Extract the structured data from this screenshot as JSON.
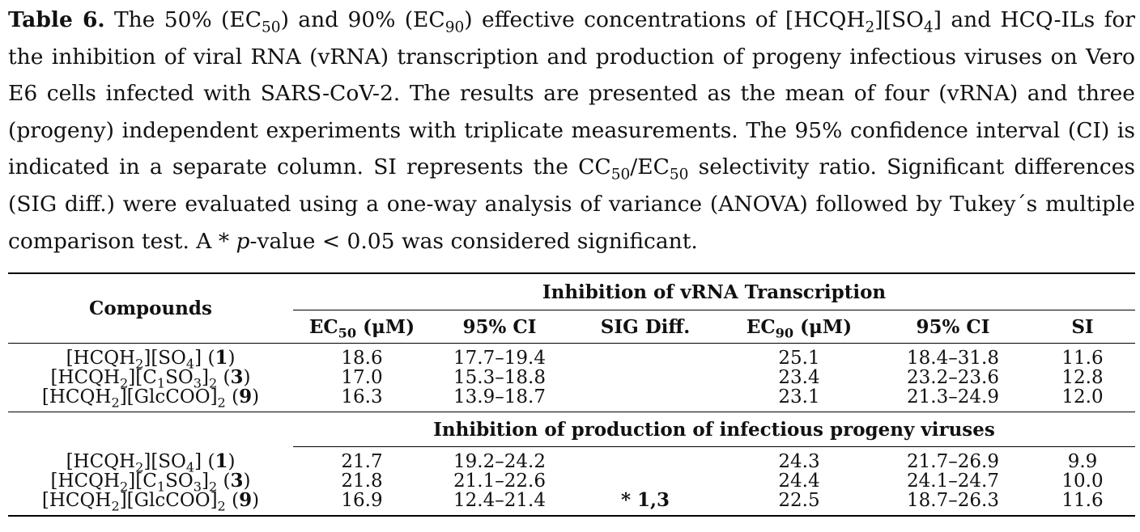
{
  "caption": {
    "label": "Table 6.",
    "p1": " The 50% (EC",
    "sub_50a": "50",
    "p2": ") and 90% (EC",
    "sub_90a": "90",
    "p3": ") effective concentrations of [HCQH",
    "sub_2a": "2",
    "p4": "][SO",
    "sub_4a": "4",
    "p5": "] and HCQ-ILs for the inhibition of viral RNA (vRNA) transcription and production of progeny infectious viruses on Vero E6 cells infected with SARS-CoV-2. The results are presented as the mean of four (vRNA) and three (progeny) independent experiments with triplicate measurements. The 95% confidence interval (CI) is indicated in a separate column. SI represents the CC",
    "sub_50b": "50",
    "p6": "/EC",
    "sub_50c": "50",
    "p7": " selectivity ratio. Significant differences (SIG diff.) were evaluated using a one-way analysis of variance (ANOVA) followed by Tukey´s multiple comparison test. A * ",
    "p_italic": "p",
    "p8": "-value < 0.05 was considered significant."
  },
  "table": {
    "compounds_header": "Compounds",
    "section1_title": "Inhibition of vRNA Transcription",
    "section2_title": "Inhibition of production of infectious progeny viruses",
    "col_ec50": "EC",
    "col_ec50_sub": "50",
    "col_ec50_unit": " (μM)",
    "col_ci": "95% CI",
    "col_sig": "SIG Diff.",
    "col_ec90": "EC",
    "col_ec90_sub": "90",
    "col_ec90_unit": " (μM)",
    "col_ci2": "95% CI",
    "col_si": "SI",
    "compounds": [
      {
        "pre": "[HCQH",
        "s1": "2",
        "mid": "][SO",
        "s2": "4",
        "post": "] (",
        "num": "1",
        "end": ")"
      },
      {
        "pre": "[HCQH",
        "s1": "2",
        "mid": "][C",
        "s2": "1",
        "mid2": "SO",
        "s3": "3",
        "mid3": "]",
        "s4": "2",
        "post": " (",
        "num": "3",
        "end": ")"
      },
      {
        "pre": "[HCQH",
        "s1": "2",
        "mid": "][GlcCOO]",
        "s2": "2",
        "post": " (",
        "num": "9",
        "end": ")"
      }
    ],
    "section1_rows": [
      {
        "ec50": "18.6",
        "ci": "17.7–19.4",
        "sig": "",
        "ec90": "25.1",
        "ci2": "18.4–31.8",
        "si": "11.6"
      },
      {
        "ec50": "17.0",
        "ci": "15.3–18.8",
        "sig": "",
        "ec90": "23.4",
        "ci2": "23.2–23.6",
        "si": "12.8"
      },
      {
        "ec50": "16.3",
        "ci": "13.9–18.7",
        "sig": "",
        "ec90": "23.1",
        "ci2": "21.3–24.9",
        "si": "12.0"
      }
    ],
    "section2_rows": [
      {
        "ec50": "21.7",
        "ci": "19.2–24.2",
        "sig": "",
        "ec90": "24.3",
        "ci2": "21.7–26.9",
        "si": "9.9"
      },
      {
        "ec50": "21.8",
        "ci": "21.1–22.6",
        "sig": "",
        "ec90": "24.4",
        "ci2": "24.1–24.7",
        "si": "10.0"
      },
      {
        "ec50": "16.9",
        "ci": "12.4–21.4",
        "sig_star": "* ",
        "sig": "1,3",
        "ec90": "22.5",
        "ci2": "18.7–26.3",
        "si": "11.6"
      }
    ]
  }
}
